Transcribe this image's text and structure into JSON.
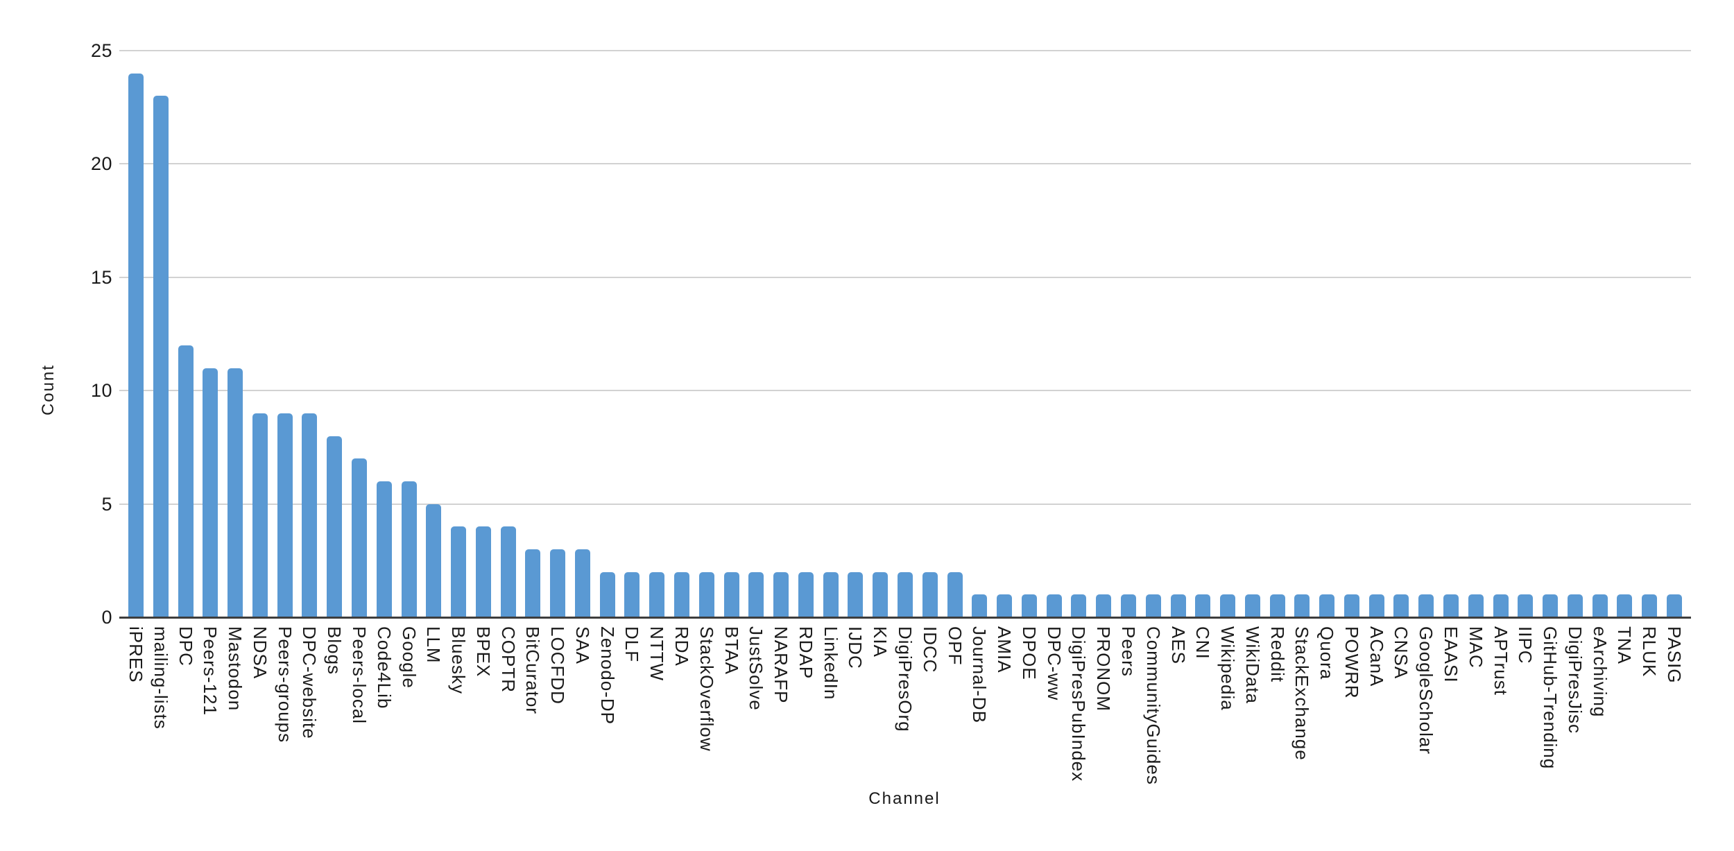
{
  "chart_data": {
    "type": "bar",
    "title": "",
    "xlabel": "Channel",
    "ylabel": "Count",
    "ylim": [
      0,
      25
    ],
    "yticks": [
      0,
      5,
      10,
      15,
      20,
      25
    ],
    "grid": "horizontal",
    "legend": "none",
    "bar_color": "#5A99D3",
    "gridline_color": "#d2d2d2",
    "axis_line_color": "#3d3d3d",
    "text_color": "#1a1a1a",
    "categories": [
      "iPRES",
      "mailing-lists",
      "DPC",
      "Peers-121",
      "Mastodon",
      "NDSA",
      "Peers-groups",
      "DPC-website",
      "Blogs",
      "Peers-local",
      "Code4Lib",
      "Google",
      "LLM",
      "Bluesky",
      "BPEX",
      "COPTR",
      "BitCurator",
      "LOCFDD",
      "SAA",
      "Zenodo-DP",
      "DLF",
      "NTTW",
      "RDA",
      "StackOverflow",
      "BTAA",
      "JustSolve",
      "NARAFP",
      "RDAP",
      "LinkedIn",
      "IJDC",
      "KIA",
      "DigiPresOrg",
      "IDCC",
      "OPF",
      "Journal-DB",
      "AMIA",
      "DPOE",
      "DPC-ww",
      "DigiPresPubIndex",
      "PRONOM",
      "Peers",
      "CommunityGuides",
      "AES",
      "CNI",
      "Wikipedia",
      "WikiData",
      "Reddit",
      "StackExchange",
      "Quora",
      "POWRR",
      "ACanA",
      "CNSA",
      "GoogleScholar",
      "EAASI",
      "MAC",
      "APTrust",
      "IIPC",
      "GitHub-Trending",
      "DigiPresJisc",
      "eArchiving",
      "TNA",
      "RLUK",
      "PASIG"
    ],
    "values": [
      24,
      23,
      12,
      11,
      11,
      9,
      9,
      9,
      8,
      7,
      6,
      6,
      5,
      4,
      4,
      4,
      3,
      3,
      3,
      2,
      2,
      2,
      2,
      2,
      2,
      2,
      2,
      2,
      2,
      2,
      2,
      2,
      2,
      2,
      1,
      1,
      1,
      1,
      1,
      1,
      1,
      1,
      1,
      1,
      1,
      1,
      1,
      1,
      1,
      1,
      1,
      1,
      1,
      1,
      1,
      1,
      1,
      1,
      1,
      1,
      1,
      1,
      1
    ]
  }
}
